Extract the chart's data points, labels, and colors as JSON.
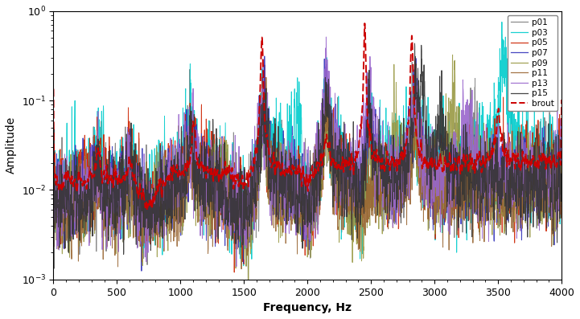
{
  "xlabel": "Frequency, Hz",
  "ylabel": "Amplitude",
  "xmin": 0,
  "xmax": 4000,
  "ymin": 0.0005,
  "ymax": 1.2,
  "legend_labels": [
    "p01",
    "p03",
    "p05",
    "p07",
    "p09",
    "p11",
    "p13",
    "p15",
    "brout"
  ],
  "colors": [
    "#7f7f7f",
    "#00cccc",
    "#cc2200",
    "#3333bb",
    "#999944",
    "#996633",
    "#9966cc",
    "#333333",
    "#cc0000"
  ],
  "background": "#ffffff",
  "fs": 4000,
  "npts": 4000
}
